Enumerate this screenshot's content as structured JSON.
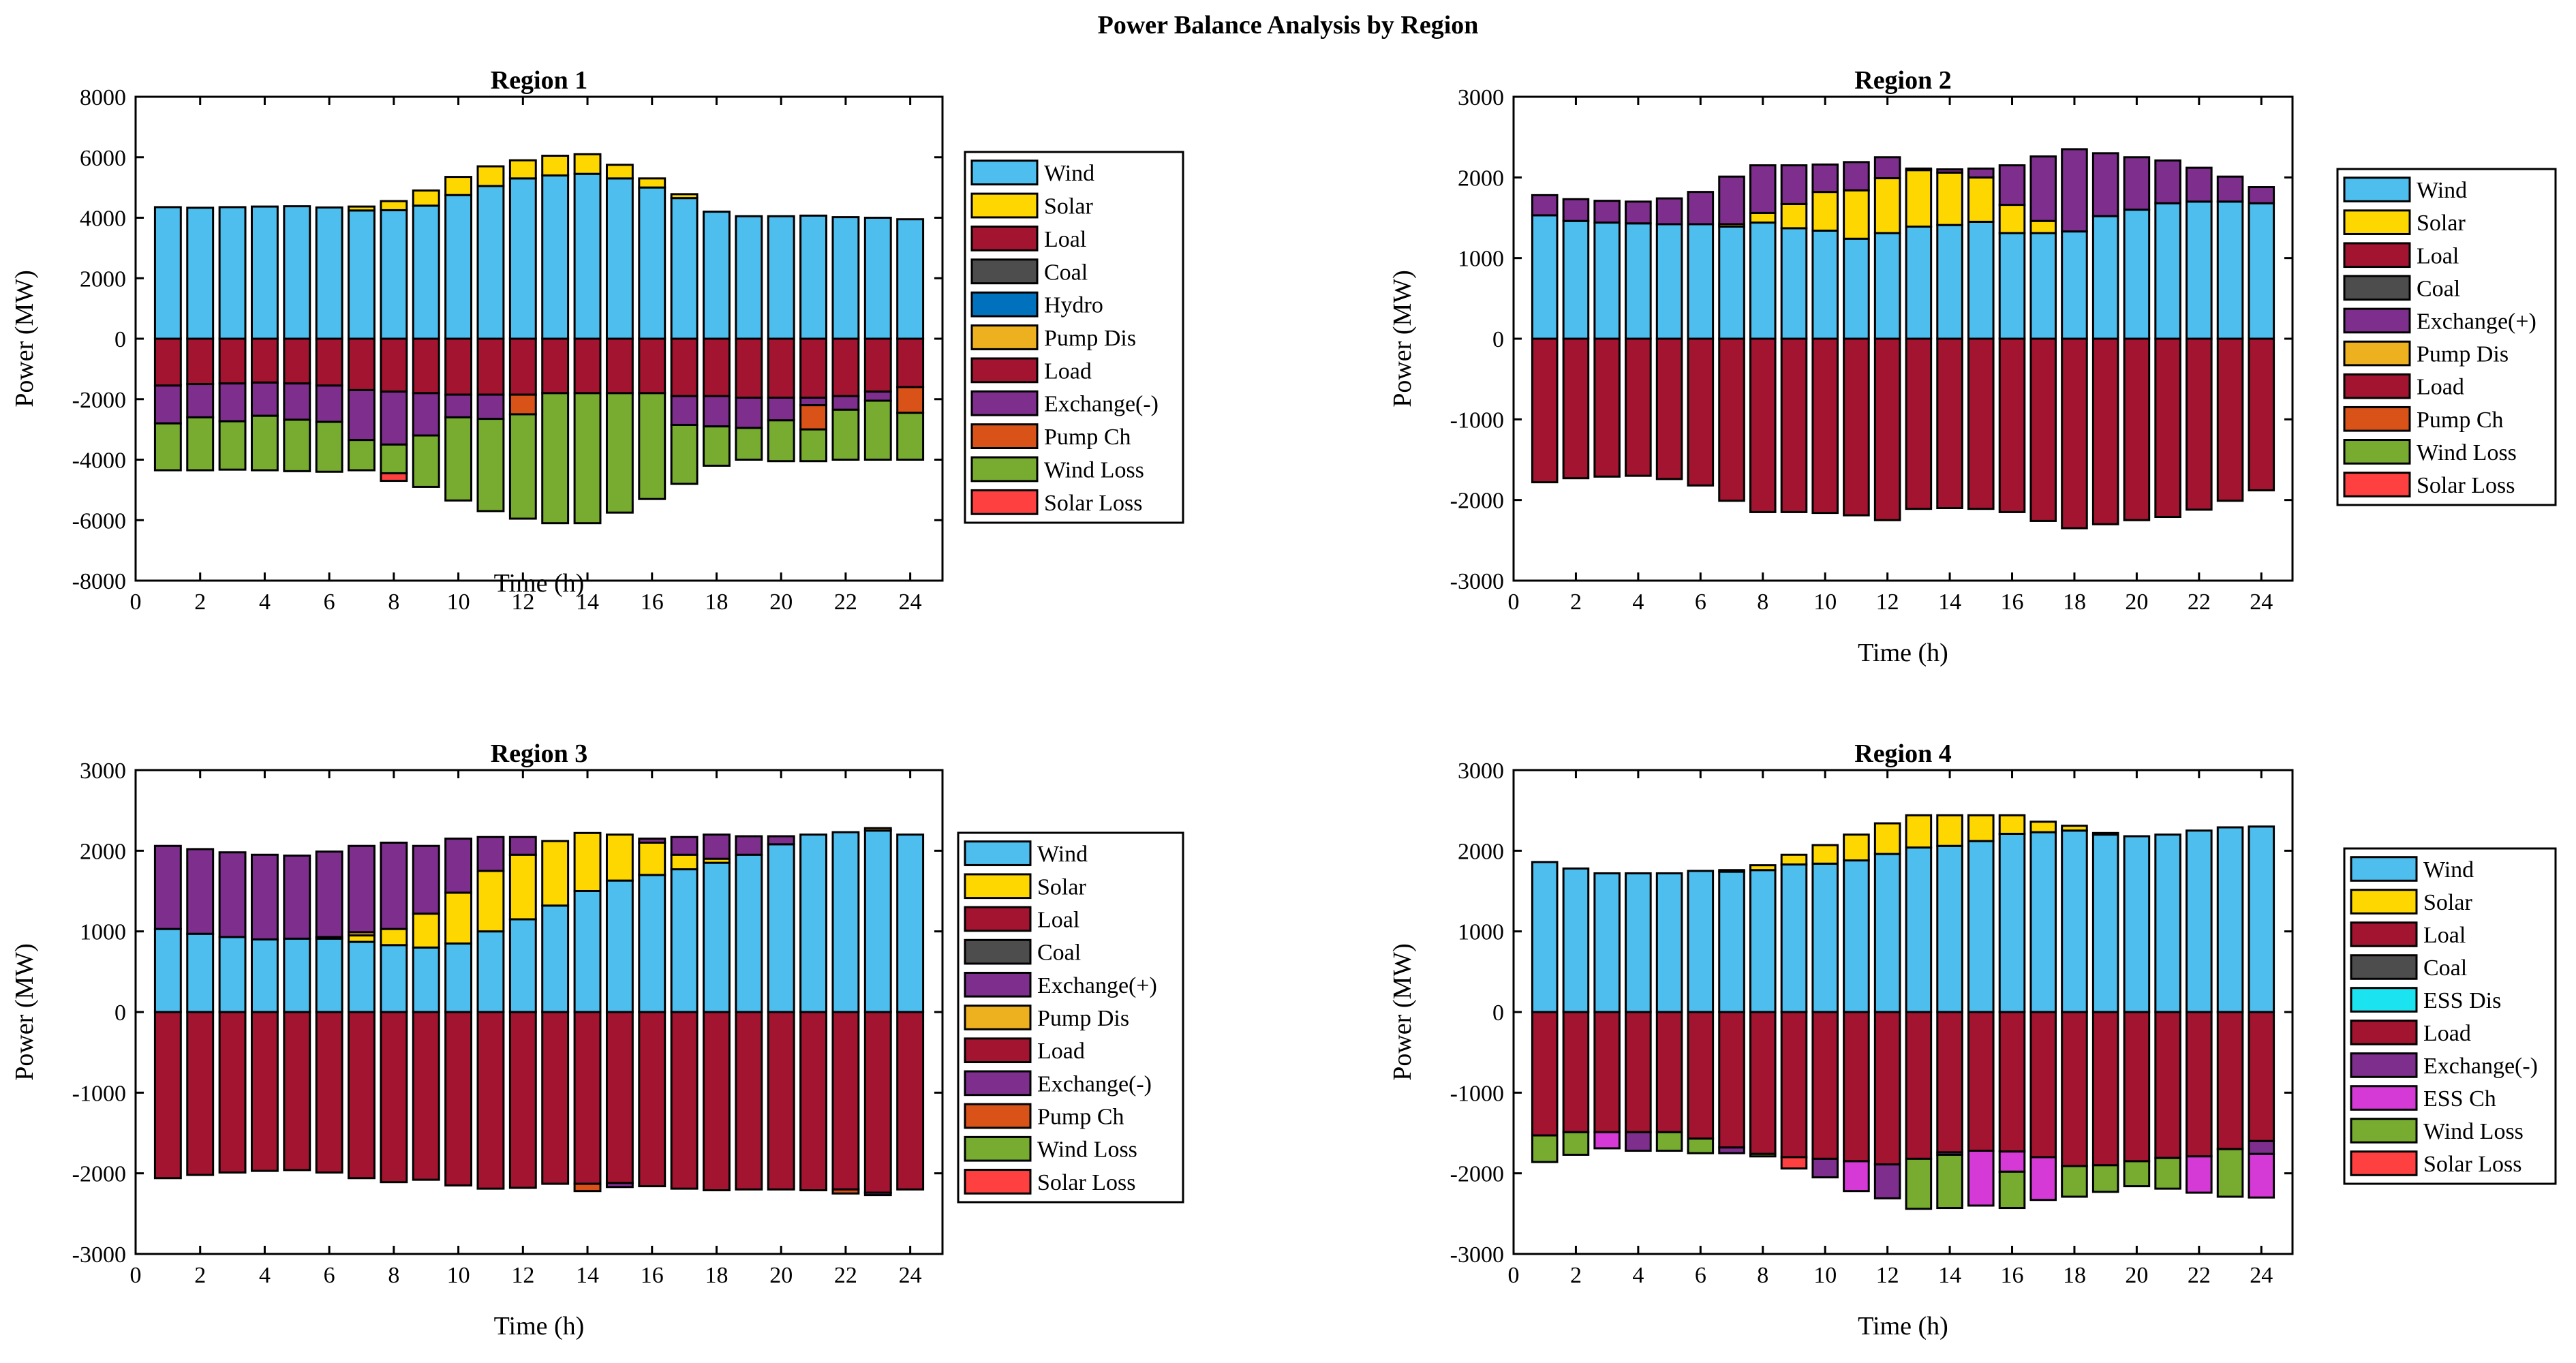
{
  "figure_title": "Power Balance Analysis by Region",
  "colors": {
    "Wind": "#4DBEEE",
    "Solar": "#FFD700",
    "Loal": "#A2142F",
    "Coal": "#4D4D4D",
    "Hydro": "#0072BD",
    "Pump Dis": "#EDB120",
    "Load": "#A2142F",
    "Exchange(-)": "#7E2F8E",
    "Exchange(+)": "#7E2F8E",
    "Pump Ch": "#D95319",
    "Wind Loss": "#77AC30",
    "Solar Loss": "#FF4040",
    "ESS Dis": "#1CE3F0",
    "ESS Ch": "#D63AD6"
  },
  "chart_data": [
    {
      "type": "bar",
      "stacked": true,
      "title": "Region 1",
      "xlabel": "Time (h)",
      "ylabel": "Power (MW)",
      "xlim": [
        0,
        25
      ],
      "ylim": [
        -8000,
        8000
      ],
      "xticks": [
        "0",
        "2",
        "4",
        "6",
        "8",
        "10",
        "12",
        "14",
        "16",
        "18",
        "20",
        "22",
        "24"
      ],
      "yticks": [
        "-8000",
        "-6000",
        "-4000",
        "-2000",
        "0",
        "2000",
        "4000",
        "6000",
        "8000"
      ],
      "legend": [
        "Wind",
        "Solar",
        "Loal",
        "Coal",
        "Hydro",
        "Pump Dis",
        "Load",
        "Exchange(-)",
        "Pump Ch",
        "Wind Loss",
        "Solar Loss"
      ],
      "legend_position": "outside-right",
      "x": [
        1,
        2,
        3,
        4,
        5,
        6,
        7,
        8,
        9,
        10,
        11,
        12,
        13,
        14,
        15,
        16,
        17,
        18,
        19,
        20,
        21,
        22,
        23,
        24
      ],
      "positive": [
        {
          "name": "Wind",
          "values": [
            4350,
            4330,
            4350,
            4370,
            4380,
            4340,
            4240,
            4250,
            4400,
            4750,
            5050,
            5300,
            5400,
            5450,
            5300,
            5000,
            4650,
            4200,
            4050,
            4050,
            4070,
            4020,
            4000,
            3950
          ]
        },
        {
          "name": "Solar",
          "values": [
            0,
            0,
            0,
            0,
            0,
            0,
            130,
            300,
            500,
            600,
            650,
            600,
            650,
            650,
            450,
            300,
            130,
            0,
            0,
            0,
            0,
            0,
            0,
            0
          ]
        }
      ],
      "negative": [
        {
          "name": "Load",
          "values": [
            1550,
            1500,
            1480,
            1450,
            1480,
            1550,
            1700,
            1750,
            1800,
            1850,
            1850,
            1850,
            1800,
            1800,
            1800,
            1800,
            1900,
            1900,
            1950,
            1950,
            1950,
            1900,
            1750,
            1600
          ]
        },
        {
          "name": "Exchange(-)",
          "values": [
            1250,
            1100,
            1250,
            1100,
            1200,
            1200,
            1650,
            1750,
            1400,
            750,
            800,
            0,
            0,
            0,
            0,
            0,
            950,
            1000,
            1000,
            750,
            250,
            450,
            300,
            0
          ]
        },
        {
          "name": "Pump Ch",
          "values": [
            0,
            0,
            0,
            0,
            0,
            0,
            0,
            0,
            0,
            0,
            0,
            650,
            0,
            0,
            0,
            0,
            0,
            0,
            0,
            0,
            800,
            0,
            0,
            850
          ]
        },
        {
          "name": "Wind Loss",
          "values": [
            1550,
            1750,
            1600,
            1800,
            1700,
            1650,
            1000,
            950,
            1700,
            2750,
            3050,
            3450,
            4300,
            4300,
            3950,
            3500,
            1950,
            1300,
            1050,
            1350,
            1050,
            1650,
            1950,
            1550
          ]
        },
        {
          "name": "Solar Loss",
          "values": [
            0,
            0,
            0,
            0,
            0,
            0,
            0,
            250,
            0,
            0,
            0,
            0,
            0,
            0,
            0,
            0,
            0,
            0,
            0,
            0,
            0,
            0,
            0,
            0
          ]
        }
      ]
    },
    {
      "type": "bar",
      "stacked": true,
      "title": "Region 2",
      "xlabel": "Time (h)",
      "ylabel": "Power (MW)",
      "xlim": [
        0,
        25
      ],
      "ylim": [
        -3000,
        3000
      ],
      "xticks": [
        "0",
        "2",
        "4",
        "6",
        "8",
        "10",
        "12",
        "14",
        "16",
        "18",
        "20",
        "22",
        "24"
      ],
      "yticks": [
        "-3000",
        "-2000",
        "-1000",
        "0",
        "1000",
        "2000",
        "3000"
      ],
      "legend": [
        "Wind",
        "Solar",
        "Loal",
        "Coal",
        "Exchange(+)",
        "Pump Dis",
        "Load",
        "Pump Ch",
        "Wind Loss",
        "Solar Loss"
      ],
      "legend_position": "outside-right",
      "x": [
        1,
        2,
        3,
        4,
        5,
        6,
        7,
        8,
        9,
        10,
        11,
        12,
        13,
        14,
        15,
        16,
        17,
        18,
        19,
        20,
        21,
        22,
        23,
        24
      ],
      "positive": [
        {
          "name": "Wind",
          "values": [
            1530,
            1460,
            1440,
            1430,
            1420,
            1420,
            1390,
            1440,
            1370,
            1340,
            1240,
            1310,
            1390,
            1410,
            1450,
            1310,
            1310,
            1330,
            1520,
            1600,
            1680,
            1700,
            1700,
            1680
          ]
        },
        {
          "name": "Solar",
          "values": [
            0,
            0,
            0,
            0,
            0,
            0,
            30,
            120,
            300,
            480,
            600,
            680,
            700,
            650,
            550,
            350,
            150,
            0,
            0,
            0,
            0,
            0,
            0,
            0
          ]
        },
        {
          "name": "Exchange(+)",
          "values": [
            250,
            270,
            270,
            270,
            320,
            400,
            590,
            590,
            480,
            340,
            350,
            260,
            20,
            40,
            110,
            490,
            800,
            1020,
            780,
            650,
            530,
            420,
            310,
            200
          ]
        }
      ],
      "negative": [
        {
          "name": "Load",
          "values": [
            1780,
            1730,
            1710,
            1700,
            1740,
            1820,
            2010,
            2150,
            2150,
            2160,
            2190,
            2250,
            2110,
            2100,
            2110,
            2150,
            2260,
            2350,
            2300,
            2250,
            2210,
            2120,
            2010,
            1880
          ]
        }
      ]
    },
    {
      "type": "bar",
      "stacked": true,
      "title": "Region 3",
      "xlabel": "Time (h)",
      "ylabel": "Power (MW)",
      "xlim": [
        0,
        25
      ],
      "ylim": [
        -3000,
        3000
      ],
      "xticks": [
        "0",
        "2",
        "4",
        "6",
        "8",
        "10",
        "12",
        "14",
        "16",
        "18",
        "20",
        "22",
        "24"
      ],
      "yticks": [
        "-3000",
        "-2000",
        "-1000",
        "0",
        "1000",
        "2000",
        "3000"
      ],
      "legend": [
        "Wind",
        "Solar",
        "Loal",
        "Coal",
        "Exchange(+)",
        "Pump Dis",
        "Load",
        "Exchange(-)",
        "Pump Ch",
        "Wind Loss",
        "Solar Loss"
      ],
      "legend_position": "outside-right",
      "x": [
        1,
        2,
        3,
        4,
        5,
        6,
        7,
        8,
        9,
        10,
        11,
        12,
        13,
        14,
        15,
        16,
        17,
        18,
        19,
        20,
        21,
        22,
        23,
        24
      ],
      "positive": [
        {
          "name": "Wind",
          "values": [
            1030,
            970,
            930,
            900,
            910,
            910,
            870,
            830,
            800,
            850,
            1000,
            1150,
            1320,
            1500,
            1630,
            1700,
            1770,
            1850,
            1950,
            2080,
            2200,
            2230,
            2250,
            2200
          ]
        },
        {
          "name": "Solar",
          "values": [
            0,
            0,
            0,
            0,
            0,
            20,
            80,
            200,
            420,
            630,
            750,
            800,
            800,
            720,
            570,
            400,
            180,
            50,
            0,
            0,
            0,
            0,
            0,
            0
          ]
        },
        {
          "name": "Pump Dis",
          "values": [
            0,
            0,
            0,
            0,
            0,
            0,
            40,
            0,
            0,
            0,
            0,
            0,
            0,
            0,
            0,
            0,
            0,
            0,
            0,
            0,
            0,
            0,
            30,
            0
          ]
        },
        {
          "name": "Exchange(+)",
          "values": [
            1030,
            1050,
            1050,
            1050,
            1030,
            1060,
            1070,
            1070,
            840,
            670,
            420,
            220,
            0,
            0,
            0,
            50,
            220,
            300,
            230,
            100,
            0,
            0,
            0,
            0
          ]
        }
      ],
      "negative": [
        {
          "name": "Load",
          "values": [
            2060,
            2020,
            1990,
            1970,
            1960,
            1990,
            2060,
            2110,
            2080,
            2150,
            2190,
            2180,
            2130,
            2130,
            2120,
            2160,
            2190,
            2210,
            2200,
            2200,
            2210,
            2200,
            2240,
            2200
          ]
        },
        {
          "name": "Exchange(-)",
          "values": [
            0,
            0,
            0,
            0,
            0,
            0,
            0,
            0,
            0,
            0,
            0,
            0,
            0,
            0,
            50,
            0,
            0,
            0,
            0,
            0,
            0,
            0,
            30,
            0
          ]
        },
        {
          "name": "Pump Ch",
          "values": [
            0,
            0,
            0,
            0,
            0,
            0,
            0,
            0,
            0,
            0,
            0,
            0,
            0,
            90,
            0,
            0,
            0,
            0,
            0,
            0,
            0,
            50,
            0,
            0
          ]
        }
      ]
    },
    {
      "type": "bar",
      "stacked": true,
      "title": "Region 4",
      "xlabel": "Time (h)",
      "ylabel": "Power (MW)",
      "xlim": [
        0,
        25
      ],
      "ylim": [
        -3000,
        3000
      ],
      "xticks": [
        "0",
        "2",
        "4",
        "6",
        "8",
        "10",
        "12",
        "14",
        "16",
        "18",
        "20",
        "22",
        "24"
      ],
      "yticks": [
        "-3000",
        "-2000",
        "-1000",
        "0",
        "1000",
        "2000",
        "3000"
      ],
      "legend": [
        "Wind",
        "Solar",
        "Loal",
        "Coal",
        "ESS Dis",
        "Load",
        "Exchange(-)",
        "ESS Ch",
        "Wind Loss",
        "Solar Loss"
      ],
      "legend_position": "outside-right",
      "x": [
        1,
        2,
        3,
        4,
        5,
        6,
        7,
        8,
        9,
        10,
        11,
        12,
        13,
        14,
        15,
        16,
        17,
        18,
        19,
        20,
        21,
        22,
        23,
        24
      ],
      "positive": [
        {
          "name": "Wind",
          "values": [
            1860,
            1780,
            1720,
            1720,
            1720,
            1750,
            1740,
            1760,
            1830,
            1840,
            1880,
            1960,
            2040,
            2060,
            2120,
            2210,
            2230,
            2250,
            2200,
            2180,
            2200,
            2250,
            2290,
            2300
          ]
        },
        {
          "name": "Solar",
          "values": [
            0,
            0,
            0,
            0,
            0,
            0,
            20,
            60,
            120,
            230,
            320,
            380,
            400,
            380,
            320,
            230,
            130,
            60,
            20,
            0,
            0,
            0,
            0,
            0
          ]
        }
      ],
      "negative": [
        {
          "name": "Load",
          "values": [
            1530,
            1490,
            1490,
            1490,
            1490,
            1570,
            1680,
            1760,
            1800,
            1820,
            1850,
            1890,
            1820,
            1740,
            1720,
            1730,
            1800,
            1910,
            1900,
            1850,
            1810,
            1790,
            1700,
            1600
          ]
        },
        {
          "name": "Exchange(-)",
          "values": [
            0,
            0,
            0,
            230,
            0,
            0,
            70,
            0,
            0,
            230,
            0,
            420,
            0,
            30,
            0,
            0,
            0,
            0,
            0,
            0,
            0,
            0,
            0,
            160
          ]
        },
        {
          "name": "ESS Ch",
          "values": [
            0,
            0,
            200,
            0,
            0,
            0,
            0,
            0,
            0,
            0,
            370,
            0,
            0,
            0,
            680,
            250,
            530,
            0,
            0,
            0,
            0,
            450,
            0,
            540
          ]
        },
        {
          "name": "Wind Loss",
          "values": [
            330,
            280,
            0,
            0,
            230,
            180,
            0,
            30,
            0,
            0,
            0,
            0,
            620,
            660,
            0,
            450,
            0,
            380,
            330,
            310,
            380,
            0,
            590,
            0
          ]
        },
        {
          "name": "Solar Loss",
          "values": [
            0,
            0,
            0,
            0,
            0,
            0,
            0,
            0,
            140,
            0,
            0,
            0,
            0,
            0,
            0,
            0,
            0,
            0,
            0,
            0,
            0,
            0,
            0,
            0
          ]
        }
      ]
    }
  ]
}
